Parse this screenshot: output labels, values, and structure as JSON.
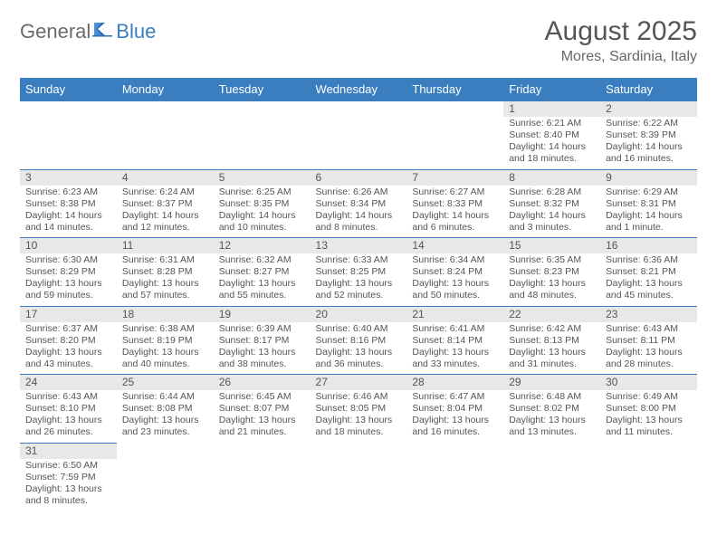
{
  "logo": {
    "word1": "General",
    "word2": "Blue"
  },
  "title": "August 2025",
  "location": "Mores, Sardinia, Italy",
  "colors": {
    "header_bg": "#3a7ebf",
    "header_text": "#ffffff",
    "daynum_bg": "#e8e8e8",
    "border": "#3a7ebf",
    "text": "#555555"
  },
  "weekdays": [
    "Sunday",
    "Monday",
    "Tuesday",
    "Wednesday",
    "Thursday",
    "Friday",
    "Saturday"
  ],
  "weeks": [
    [
      null,
      null,
      null,
      null,
      null,
      {
        "n": "1",
        "sr": "Sunrise: 6:21 AM",
        "ss": "Sunset: 8:40 PM",
        "dl": "Daylight: 14 hours and 18 minutes."
      },
      {
        "n": "2",
        "sr": "Sunrise: 6:22 AM",
        "ss": "Sunset: 8:39 PM",
        "dl": "Daylight: 14 hours and 16 minutes."
      }
    ],
    [
      {
        "n": "3",
        "sr": "Sunrise: 6:23 AM",
        "ss": "Sunset: 8:38 PM",
        "dl": "Daylight: 14 hours and 14 minutes."
      },
      {
        "n": "4",
        "sr": "Sunrise: 6:24 AM",
        "ss": "Sunset: 8:37 PM",
        "dl": "Daylight: 14 hours and 12 minutes."
      },
      {
        "n": "5",
        "sr": "Sunrise: 6:25 AM",
        "ss": "Sunset: 8:35 PM",
        "dl": "Daylight: 14 hours and 10 minutes."
      },
      {
        "n": "6",
        "sr": "Sunrise: 6:26 AM",
        "ss": "Sunset: 8:34 PM",
        "dl": "Daylight: 14 hours and 8 minutes."
      },
      {
        "n": "7",
        "sr": "Sunrise: 6:27 AM",
        "ss": "Sunset: 8:33 PM",
        "dl": "Daylight: 14 hours and 6 minutes."
      },
      {
        "n": "8",
        "sr": "Sunrise: 6:28 AM",
        "ss": "Sunset: 8:32 PM",
        "dl": "Daylight: 14 hours and 3 minutes."
      },
      {
        "n": "9",
        "sr": "Sunrise: 6:29 AM",
        "ss": "Sunset: 8:31 PM",
        "dl": "Daylight: 14 hours and 1 minute."
      }
    ],
    [
      {
        "n": "10",
        "sr": "Sunrise: 6:30 AM",
        "ss": "Sunset: 8:29 PM",
        "dl": "Daylight: 13 hours and 59 minutes."
      },
      {
        "n": "11",
        "sr": "Sunrise: 6:31 AM",
        "ss": "Sunset: 8:28 PM",
        "dl": "Daylight: 13 hours and 57 minutes."
      },
      {
        "n": "12",
        "sr": "Sunrise: 6:32 AM",
        "ss": "Sunset: 8:27 PM",
        "dl": "Daylight: 13 hours and 55 minutes."
      },
      {
        "n": "13",
        "sr": "Sunrise: 6:33 AM",
        "ss": "Sunset: 8:25 PM",
        "dl": "Daylight: 13 hours and 52 minutes."
      },
      {
        "n": "14",
        "sr": "Sunrise: 6:34 AM",
        "ss": "Sunset: 8:24 PM",
        "dl": "Daylight: 13 hours and 50 minutes."
      },
      {
        "n": "15",
        "sr": "Sunrise: 6:35 AM",
        "ss": "Sunset: 8:23 PM",
        "dl": "Daylight: 13 hours and 48 minutes."
      },
      {
        "n": "16",
        "sr": "Sunrise: 6:36 AM",
        "ss": "Sunset: 8:21 PM",
        "dl": "Daylight: 13 hours and 45 minutes."
      }
    ],
    [
      {
        "n": "17",
        "sr": "Sunrise: 6:37 AM",
        "ss": "Sunset: 8:20 PM",
        "dl": "Daylight: 13 hours and 43 minutes."
      },
      {
        "n": "18",
        "sr": "Sunrise: 6:38 AM",
        "ss": "Sunset: 8:19 PM",
        "dl": "Daylight: 13 hours and 40 minutes."
      },
      {
        "n": "19",
        "sr": "Sunrise: 6:39 AM",
        "ss": "Sunset: 8:17 PM",
        "dl": "Daylight: 13 hours and 38 minutes."
      },
      {
        "n": "20",
        "sr": "Sunrise: 6:40 AM",
        "ss": "Sunset: 8:16 PM",
        "dl": "Daylight: 13 hours and 36 minutes."
      },
      {
        "n": "21",
        "sr": "Sunrise: 6:41 AM",
        "ss": "Sunset: 8:14 PM",
        "dl": "Daylight: 13 hours and 33 minutes."
      },
      {
        "n": "22",
        "sr": "Sunrise: 6:42 AM",
        "ss": "Sunset: 8:13 PM",
        "dl": "Daylight: 13 hours and 31 minutes."
      },
      {
        "n": "23",
        "sr": "Sunrise: 6:43 AM",
        "ss": "Sunset: 8:11 PM",
        "dl": "Daylight: 13 hours and 28 minutes."
      }
    ],
    [
      {
        "n": "24",
        "sr": "Sunrise: 6:43 AM",
        "ss": "Sunset: 8:10 PM",
        "dl": "Daylight: 13 hours and 26 minutes."
      },
      {
        "n": "25",
        "sr": "Sunrise: 6:44 AM",
        "ss": "Sunset: 8:08 PM",
        "dl": "Daylight: 13 hours and 23 minutes."
      },
      {
        "n": "26",
        "sr": "Sunrise: 6:45 AM",
        "ss": "Sunset: 8:07 PM",
        "dl": "Daylight: 13 hours and 21 minutes."
      },
      {
        "n": "27",
        "sr": "Sunrise: 6:46 AM",
        "ss": "Sunset: 8:05 PM",
        "dl": "Daylight: 13 hours and 18 minutes."
      },
      {
        "n": "28",
        "sr": "Sunrise: 6:47 AM",
        "ss": "Sunset: 8:04 PM",
        "dl": "Daylight: 13 hours and 16 minutes."
      },
      {
        "n": "29",
        "sr": "Sunrise: 6:48 AM",
        "ss": "Sunset: 8:02 PM",
        "dl": "Daylight: 13 hours and 13 minutes."
      },
      {
        "n": "30",
        "sr": "Sunrise: 6:49 AM",
        "ss": "Sunset: 8:00 PM",
        "dl": "Daylight: 13 hours and 11 minutes."
      }
    ],
    [
      {
        "n": "31",
        "sr": "Sunrise: 6:50 AM",
        "ss": "Sunset: 7:59 PM",
        "dl": "Daylight: 13 hours and 8 minutes."
      },
      null,
      null,
      null,
      null,
      null,
      null
    ]
  ]
}
